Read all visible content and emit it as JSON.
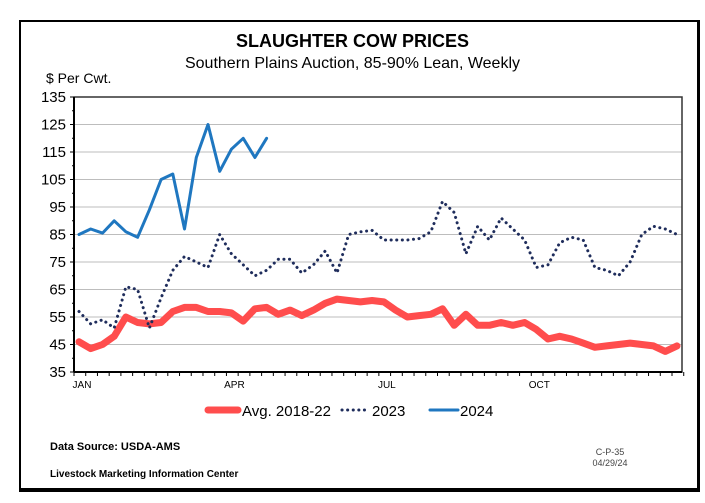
{
  "chart_data": {
    "type": "line",
    "title": "SLAUGHTER COW PRICES",
    "subtitle": "Southern Plains Auction, 85-90% Lean, Weekly",
    "ylabel": "$ Per Cwt.",
    "xlabel": "",
    "ylim": [
      35,
      135
    ],
    "yticks": [
      35,
      45,
      55,
      65,
      75,
      85,
      95,
      105,
      115,
      125,
      135
    ],
    "x_month_labels": [
      {
        "label": "JAN",
        "week": 1
      },
      {
        "label": "APR",
        "week": 14
      },
      {
        "label": "JUL",
        "week": 27
      },
      {
        "label": "OCT",
        "week": 40
      }
    ],
    "grid": true,
    "legend": "bottom",
    "series": [
      {
        "name": "Avg. 2018-22",
        "color": "#ff4d4d",
        "style": "thick-solid",
        "values": [
          46,
          43.5,
          45,
          48,
          55,
          53,
          52.5,
          53,
          57,
          58.5,
          58.5,
          57,
          57,
          56.5,
          53.5,
          58,
          58.5,
          56,
          57.5,
          55.5,
          57.5,
          60,
          61.5,
          61,
          60.5,
          61,
          60.5,
          57.5,
          55,
          55.5,
          56,
          58,
          52,
          56,
          52,
          52,
          53,
          52,
          53,
          50.5,
          47,
          48,
          47,
          45.5,
          44,
          44.5,
          45,
          45.5,
          45,
          44.5,
          42.5,
          44.5
        ]
      },
      {
        "name": "2023",
        "color": "#1f2d5c",
        "style": "dotted",
        "values": [
          57,
          52.5,
          54,
          51,
          66,
          65,
          51,
          62,
          72,
          77,
          75,
          73,
          85,
          78,
          74,
          70,
          72,
          76,
          76,
          71,
          74,
          79,
          71,
          85,
          86,
          86.5,
          83,
          83,
          83,
          83.5,
          86,
          97,
          93,
          78,
          88,
          83,
          91,
          87,
          83,
          73,
          74,
          82,
          84,
          83,
          73,
          72,
          70,
          75,
          85,
          88,
          87,
          85
        ]
      },
      {
        "name": "2024",
        "color": "#1f77c0",
        "style": "solid",
        "values": [
          85,
          87,
          85.5,
          90,
          86,
          84,
          94,
          105,
          107,
          87,
          113,
          125,
          108,
          116,
          120,
          113,
          120
        ]
      }
    ]
  },
  "footer": {
    "source": "Data Source:  USDA-AMS",
    "org": "Livestock Marketing Information Center",
    "code": "C-P-35",
    "date": "04/29/24"
  }
}
